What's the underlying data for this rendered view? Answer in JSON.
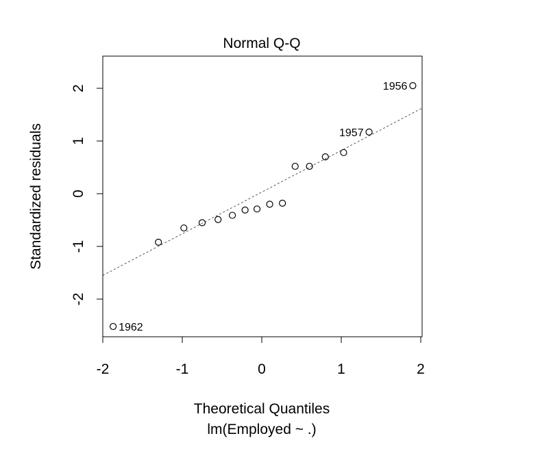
{
  "chart_data": {
    "type": "scatter",
    "title": "Normal Q-Q",
    "xlabel": "Theoretical Quantiles",
    "subtitle": "lm(Employed ~ .)",
    "ylabel": "Standardized residuals",
    "xlim": [
      -2,
      2
    ],
    "ylim": [
      -2.6,
      2.6
    ],
    "x_ticks": [
      -2,
      -1,
      0,
      1,
      2
    ],
    "y_ticks": [
      -2,
      -1,
      0,
      1,
      2
    ],
    "grid": false,
    "points": [
      {
        "x": -1.87,
        "y": -2.52,
        "label": "1962"
      },
      {
        "x": -1.3,
        "y": -0.92,
        "label": ""
      },
      {
        "x": -0.98,
        "y": -0.65,
        "label": ""
      },
      {
        "x": -0.75,
        "y": -0.55,
        "label": ""
      },
      {
        "x": -0.55,
        "y": -0.49,
        "label": ""
      },
      {
        "x": -0.37,
        "y": -0.41,
        "label": ""
      },
      {
        "x": -0.21,
        "y": -0.31,
        "label": ""
      },
      {
        "x": -0.06,
        "y": -0.29,
        "label": ""
      },
      {
        "x": 0.1,
        "y": -0.2,
        "label": ""
      },
      {
        "x": 0.26,
        "y": -0.18,
        "label": ""
      },
      {
        "x": 0.42,
        "y": 0.52,
        "label": ""
      },
      {
        "x": 0.6,
        "y": 0.52,
        "label": ""
      },
      {
        "x": 0.8,
        "y": 0.7,
        "label": ""
      },
      {
        "x": 1.03,
        "y": 0.78,
        "label": ""
      },
      {
        "x": 1.35,
        "y": 1.17,
        "label": "1957"
      },
      {
        "x": 1.9,
        "y": 2.05,
        "label": "1956"
      }
    ],
    "reference_line": {
      "intercept": 0.03,
      "slope": 0.79
    }
  }
}
